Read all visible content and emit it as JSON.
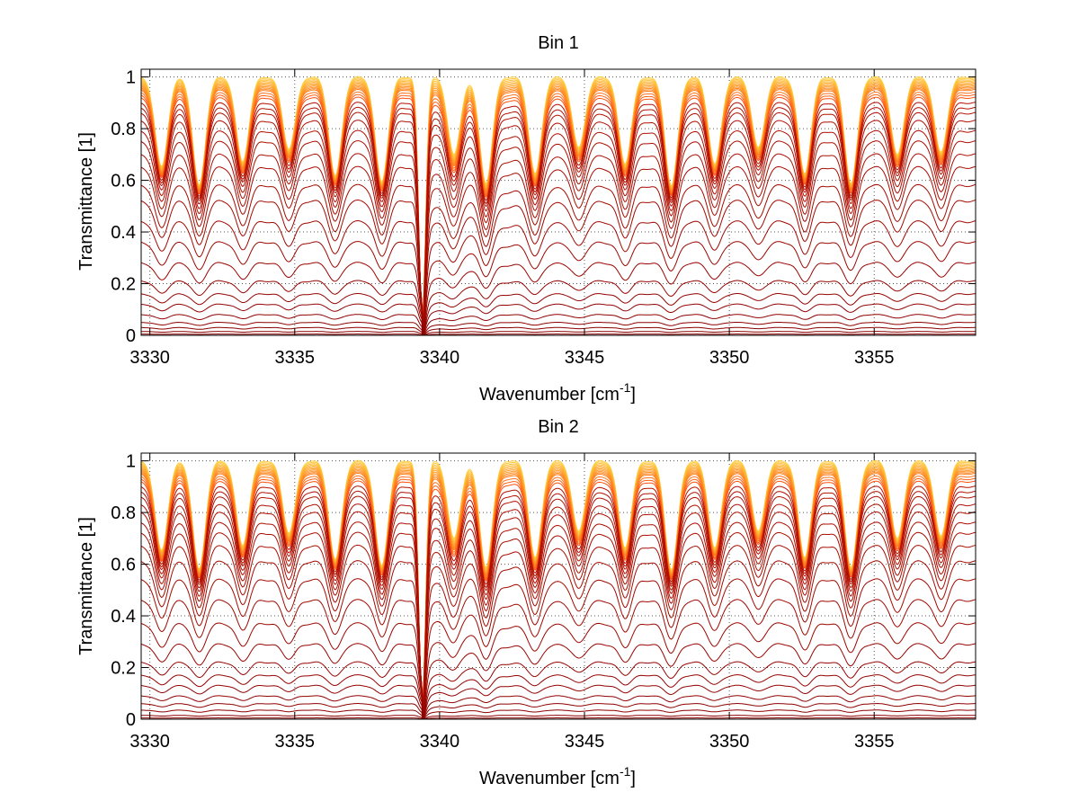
{
  "chart_data": [
    {
      "type": "line",
      "title": "Bin 1",
      "xlabel": "Wavenumber [cm",
      "xlabel_sup": "-1",
      "xlabel_suffix": "]",
      "ylabel": "Transmittance [1]",
      "xlim": [
        3329.7,
        3358.5
      ],
      "ylim": [
        0,
        1.03
      ],
      "xticks": [
        3330,
        3335,
        3340,
        3345,
        3350,
        3355
      ],
      "yticks": [
        0,
        0.2,
        0.4,
        0.6,
        0.8,
        1
      ],
      "ytick_labels": [
        "0",
        "0.2",
        "0.4",
        "0.6",
        "0.8",
        "1"
      ],
      "grid": true,
      "legend": "none",
      "colormap": "dark red (strong absorption) to yellow (weak absorption)",
      "color_dark": "#8b0000",
      "color_mid": "#ff3000",
      "color_light": "#ffd040",
      "strong_line_x": 3339.4,
      "absorption_lines_x": [
        3330.4,
        3331.7,
        3333.2,
        3334.8,
        3336.4,
        3338.0,
        3339.4,
        3340.5,
        3341.6,
        3343.3,
        3344.8,
        3346.4,
        3348.0,
        3349.5,
        3351.0,
        3352.6,
        3354.2,
        3355.8,
        3357.3
      ],
      "baseline_levels": [
        1.0,
        0.995,
        0.99,
        0.985,
        0.98,
        0.975,
        0.97,
        0.965,
        0.96,
        0.955,
        0.95,
        0.94,
        0.93,
        0.92,
        0.9,
        0.88,
        0.86,
        0.83,
        0.79,
        0.75,
        0.7,
        0.65,
        0.58,
        0.52,
        0.44,
        0.36,
        0.28,
        0.21,
        0.16,
        0.12,
        0.08,
        0.05,
        0.03,
        0.015,
        0.005
      ]
    },
    {
      "type": "line",
      "title": "Bin 2",
      "xlabel": "Wavenumber [cm",
      "xlabel_sup": "-1",
      "xlabel_suffix": "]",
      "ylabel": "Transmittance [1]",
      "xlim": [
        3329.7,
        3358.5
      ],
      "ylim": [
        0,
        1.03
      ],
      "xticks": [
        3330,
        3335,
        3340,
        3345,
        3350,
        3355
      ],
      "yticks": [
        0,
        0.2,
        0.4,
        0.6,
        0.8,
        1
      ],
      "ytick_labels": [
        "0",
        "0.2",
        "0.4",
        "0.6",
        "0.8",
        "1"
      ],
      "grid": true,
      "legend": "none",
      "colormap": "dark red (strong absorption) to yellow (weak absorption)",
      "color_dark": "#8b0000",
      "color_mid": "#ff3000",
      "color_light": "#ffd040",
      "strong_line_x": 3339.4,
      "absorption_lines_x": [
        3330.4,
        3331.7,
        3333.2,
        3334.8,
        3336.4,
        3338.0,
        3339.4,
        3340.5,
        3341.6,
        3343.3,
        3344.8,
        3346.4,
        3348.0,
        3349.5,
        3351.0,
        3352.6,
        3354.2,
        3355.8,
        3357.3
      ],
      "baseline_levels": [
        1.0,
        0.995,
        0.99,
        0.985,
        0.98,
        0.975,
        0.97,
        0.965,
        0.96,
        0.955,
        0.95,
        0.94,
        0.93,
        0.92,
        0.9,
        0.88,
        0.86,
        0.83,
        0.8,
        0.76,
        0.72,
        0.67,
        0.61,
        0.54,
        0.46,
        0.37,
        0.29,
        0.22,
        0.17,
        0.13,
        0.09,
        0.06,
        0.035,
        0.015,
        0.005
      ]
    }
  ]
}
